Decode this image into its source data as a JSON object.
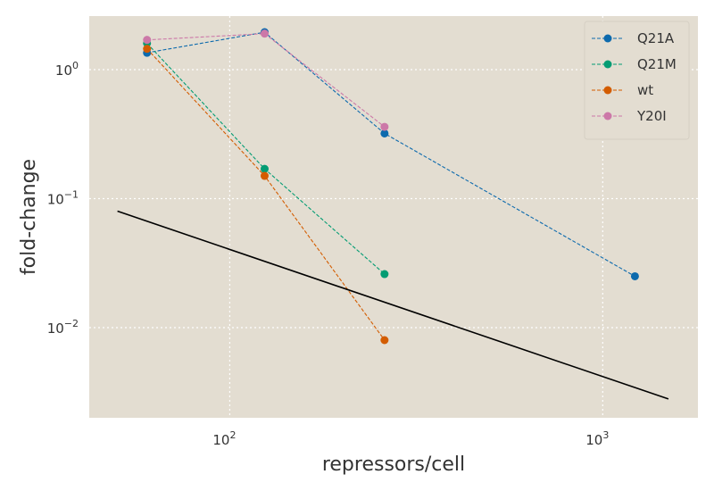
{
  "chart_data": {
    "type": "line",
    "title": "",
    "xlabel": "repressors/cell",
    "ylabel": "fold-change",
    "xscale": "log",
    "yscale": "log",
    "xlim": [
      42,
      1800
    ],
    "ylim": [
      0.002,
      2.6
    ],
    "x_ticks": [
      {
        "value": 100,
        "mantissa": "10",
        "exp": "2"
      },
      {
        "value": 1000,
        "mantissa": "10",
        "exp": "3"
      }
    ],
    "y_ticks": [
      {
        "value": 1,
        "mantissa": "10",
        "exp": "0"
      },
      {
        "value": 0.1,
        "mantissa": "10",
        "exp": "−1"
      },
      {
        "value": 0.01,
        "mantissa": "10",
        "exp": "−2"
      }
    ],
    "grid": true,
    "legend_position": "top-right",
    "background_color": "#e3ddd1",
    "series": [
      {
        "name": "Q21A",
        "color": "#0d6aad",
        "style": "dashed-marker",
        "x": [
          60,
          124,
          260,
          1220
        ],
        "y": [
          1.35,
          1.95,
          0.32,
          0.025
        ]
      },
      {
        "name": "Q21M",
        "color": "#039c73",
        "style": "dashed-marker",
        "x": [
          60,
          124,
          260
        ],
        "y": [
          1.6,
          0.17,
          0.026
        ]
      },
      {
        "name": "wt",
        "color": "#d35c00",
        "style": "dashed-marker",
        "x": [
          60,
          124,
          260
        ],
        "y": [
          1.45,
          0.15,
          0.008
        ]
      },
      {
        "name": "Y20I",
        "color": "#cc78a8",
        "style": "dashed-marker",
        "x": [
          60,
          124,
          260
        ],
        "y": [
          1.7,
          1.9,
          0.36
        ]
      },
      {
        "name": "",
        "color": "#000000",
        "style": "solid",
        "x": [
          50,
          1500
        ],
        "y": [
          0.08,
          0.0028
        ]
      }
    ]
  }
}
